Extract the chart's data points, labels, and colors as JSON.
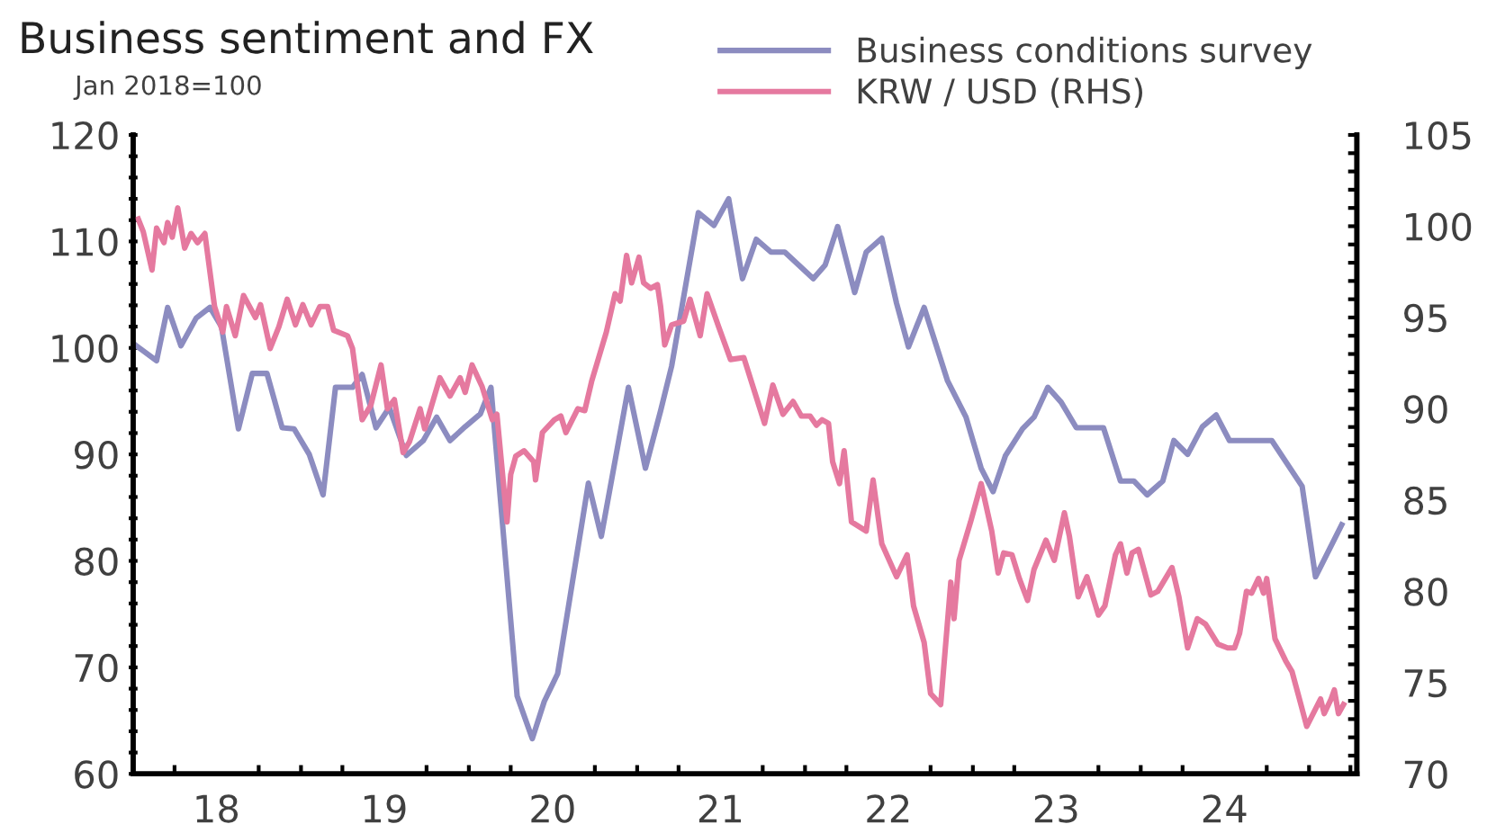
{
  "chart_data": {
    "type": "line",
    "title": "Business sentiment and FX",
    "annotations": [
      "Jan 2018=100"
    ],
    "xlim": [
      "2018-01-01",
      "2025-04-15"
    ],
    "xticks": [
      {
        "value": "2018-04-01",
        "label": null
      },
      {
        "value": "2018-07-01",
        "label": "18"
      },
      {
        "value": "2018-10-01",
        "label": null
      },
      {
        "value": "2019-01-01",
        "label": null
      },
      {
        "value": "2019-04-01",
        "label": null
      },
      {
        "value": "2019-07-01",
        "label": "19"
      },
      {
        "value": "2019-10-01",
        "label": null
      },
      {
        "value": "2020-01-01",
        "label": null
      },
      {
        "value": "2020-04-01",
        "label": null
      },
      {
        "value": "2020-07-01",
        "label": "20"
      },
      {
        "value": "2020-10-01",
        "label": null
      },
      {
        "value": "2021-01-01",
        "label": null
      },
      {
        "value": "2021-04-01",
        "label": null
      },
      {
        "value": "2021-07-01",
        "label": "21"
      },
      {
        "value": "2021-10-01",
        "label": null
      },
      {
        "value": "2022-01-01",
        "label": null
      },
      {
        "value": "2022-04-01",
        "label": null
      },
      {
        "value": "2022-07-01",
        "label": "22"
      },
      {
        "value": "2022-10-01",
        "label": null
      },
      {
        "value": "2023-01-01",
        "label": null
      },
      {
        "value": "2023-04-01",
        "label": null
      },
      {
        "value": "2023-07-01",
        "label": "23"
      },
      {
        "value": "2023-10-01",
        "label": null
      },
      {
        "value": "2024-01-01",
        "label": null
      },
      {
        "value": "2024-04-01",
        "label": null
      },
      {
        "value": "2024-07-01",
        "label": "24"
      },
      {
        "value": "2024-10-01",
        "label": null
      },
      {
        "value": "2025-01-01",
        "label": null
      },
      {
        "value": "2025-04-01",
        "label": null
      }
    ],
    "ylim": [
      60,
      120
    ],
    "yticks": [
      60,
      {
        "value": 62,
        "label": null
      },
      {
        "value": 64,
        "label": null
      },
      {
        "value": 66,
        "label": null
      },
      {
        "value": 68,
        "label": null
      },
      70,
      {
        "value": 72,
        "label": null
      },
      {
        "value": 74,
        "label": null
      },
      {
        "value": 76,
        "label": null
      },
      {
        "value": 78,
        "label": null
      },
      80,
      {
        "value": 82,
        "label": null
      },
      {
        "value": 84,
        "label": null
      },
      {
        "value": 86,
        "label": null
      },
      {
        "value": 88,
        "label": null
      },
      90,
      {
        "value": 92,
        "label": null
      },
      {
        "value": 94,
        "label": null
      },
      {
        "value": 96,
        "label": null
      },
      {
        "value": 98,
        "label": null
      },
      100,
      {
        "value": 102,
        "label": null
      },
      {
        "value": 104,
        "label": null
      },
      {
        "value": 106,
        "label": null
      },
      {
        "value": 108,
        "label": null
      },
      110,
      {
        "value": 112,
        "label": null
      },
      {
        "value": 114,
        "label": null
      },
      {
        "value": 116,
        "label": null
      },
      {
        "value": 118,
        "label": null
      },
      120
    ],
    "y2lim": [
      70,
      105
    ],
    "y2ticks": [
      70,
      {
        "value": 71,
        "label": null
      },
      {
        "value": 72,
        "label": null
      },
      {
        "value": 73,
        "label": null
      },
      {
        "value": 74,
        "label": null
      },
      75,
      {
        "value": 76,
        "label": null
      },
      {
        "value": 77,
        "label": null
      },
      {
        "value": 78,
        "label": null
      },
      {
        "value": 79,
        "label": null
      },
      80,
      {
        "value": 81,
        "label": null
      },
      {
        "value": 82,
        "label": null
      },
      {
        "value": 83,
        "label": null
      },
      {
        "value": 84,
        "label": null
      },
      85,
      {
        "value": 86,
        "label": null
      },
      {
        "value": 87,
        "label": null
      },
      {
        "value": 88,
        "label": null
      },
      {
        "value": 89,
        "label": null
      },
      90,
      {
        "value": 91,
        "label": null
      },
      {
        "value": 92,
        "label": null
      },
      {
        "value": 93,
        "label": null
      },
      {
        "value": 94,
        "label": null
      },
      95,
      {
        "value": 96,
        "label": null
      },
      {
        "value": 97,
        "label": null
      },
      {
        "value": 98,
        "label": null
      },
      {
        "value": 99,
        "label": null
      },
      100,
      {
        "value": 101,
        "label": null
      },
      {
        "value": 102,
        "label": null
      },
      {
        "value": 103,
        "label": null
      },
      {
        "value": 104,
        "label": null
      },
      105
    ],
    "grid": false,
    "legend": "top right",
    "line_style": "solid",
    "marker": "none",
    "series": [
      {
        "name": "Business conditions survey",
        "color": "#8c8cc0",
        "x": [
          "2018-01-08",
          "2018-02-21",
          "2018-03-17",
          "2018-04-15",
          "2018-05-18",
          "2018-06-17",
          "2018-07-12",
          "2018-08-18",
          "2018-09-17",
          "2018-10-19",
          "2018-11-21",
          "2018-12-17",
          "2019-01-19",
          "2019-02-18",
          "2019-03-17",
          "2019-04-23",
          "2019-05-14",
          "2019-06-13",
          "2019-07-12",
          "2019-08-18",
          "2019-09-24",
          "2019-10-23",
          "2019-11-21",
          "2019-12-24",
          "2020-01-26",
          "2020-02-18",
          "2020-04-15",
          "2020-05-18",
          "2020-06-13",
          "2020-07-12",
          "2020-09-17",
          "2020-10-15",
          "2020-12-13",
          "2021-01-19",
          "2021-02-21",
          "2021-03-17",
          "2021-05-14",
          "2021-06-17",
          "2021-07-19",
          "2021-08-18",
          "2021-09-17",
          "2021-10-19",
          "2021-11-18",
          "2022-01-19",
          "2022-02-14",
          "2022-03-13",
          "2022-04-19",
          "2022-05-14",
          "2022-06-17",
          "2022-07-19",
          "2022-08-14",
          "2022-09-17",
          "2022-11-07",
          "2022-12-17",
          "2023-01-19",
          "2023-02-14",
          "2023-03-13",
          "2023-04-19",
          "2023-05-14",
          "2023-06-13",
          "2023-07-12",
          "2023-08-14",
          "2023-10-12",
          "2023-11-18",
          "2023-12-17",
          "2024-01-15",
          "2024-02-18",
          "2024-03-13",
          "2024-04-12",
          "2024-05-14",
          "2024-06-13",
          "2024-07-12",
          "2024-10-12",
          "2024-12-17",
          "2025-01-15",
          "2025-03-13"
        ],
        "values": [
          100.2,
          98.8,
          103.8,
          100.2,
          102.8,
          103.8,
          102,
          92.4,
          97.6,
          97.6,
          92.5,
          92.4,
          90,
          86.2,
          96.3,
          96.3,
          97.5,
          92.5,
          94.4,
          89.9,
          91.3,
          93.5,
          91.3,
          92.6,
          93.8,
          96.3,
          67.3,
          63.3,
          66.8,
          69.4,
          87.3,
          82.3,
          96.3,
          88.7,
          94.1,
          98.3,
          112.7,
          111.5,
          114,
          106.5,
          110.2,
          109,
          109,
          106.5,
          107.8,
          111.4,
          105.2,
          109,
          110.3,
          104.2,
          100.1,
          103.8,
          96.9,
          93.5,
          88.7,
          86.5,
          89.9,
          92.4,
          93.5,
          96.3,
          94.9,
          92.5,
          92.5,
          87.5,
          87.5,
          86.2,
          87.5,
          91.3,
          90,
          92.6,
          93.7,
          91.3,
          91.3,
          87,
          78.5,
          83.4
        ]
      },
      {
        "name": "KRW / USD (RHS)",
        "color": "#e5799f",
        "axis": "y2",
        "x": [
          "2018-01-12",
          "2018-01-23",
          "2018-02-11",
          "2018-02-21",
          "2018-03-09",
          "2018-03-17",
          "2018-03-27",
          "2018-04-08",
          "2018-04-23",
          "2018-05-07",
          "2018-05-21",
          "2018-06-06",
          "2018-06-27",
          "2018-07-15",
          "2018-07-23",
          "2018-08-11",
          "2018-08-29",
          "2018-09-24",
          "2018-10-05",
          "2018-10-26",
          "2018-11-14",
          "2018-12-02",
          "2018-12-20",
          "2019-01-05",
          "2019-01-23",
          "2019-02-11",
          "2019-02-28",
          "2019-03-13",
          "2019-04-12",
          "2019-04-23",
          "2019-05-14",
          "2019-06-02",
          "2019-06-24",
          "2019-07-08",
          "2019-07-23",
          "2019-08-11",
          "2019-08-25",
          "2019-09-17",
          "2019-09-27",
          "2019-10-30",
          "2019-11-21",
          "2019-12-13",
          "2019-12-24",
          "2020-01-08",
          "2020-01-30",
          "2020-02-21",
          "2020-03-02",
          "2020-03-24",
          "2020-04-01",
          "2020-04-12",
          "2020-04-30",
          "2020-05-21",
          "2020-05-25",
          "2020-06-09",
          "2020-07-05",
          "2020-07-19",
          "2020-07-30",
          "2020-08-25",
          "2020-09-09",
          "2020-09-24",
          "2020-10-26",
          "2020-11-14",
          "2020-11-25",
          "2020-12-09",
          "2020-12-20",
          "2021-01-05",
          "2021-01-15",
          "2021-01-30",
          "2021-02-14",
          "2021-02-21",
          "2021-03-02",
          "2021-03-17",
          "2021-04-12",
          "2021-04-26",
          "2021-05-07",
          "2021-05-18",
          "2021-06-02",
          "2021-06-27",
          "2021-07-23",
          "2021-08-21",
          "2021-09-20",
          "2021-10-05",
          "2021-10-23",
          "2021-11-14",
          "2021-12-06",
          "2021-12-24",
          "2022-01-12",
          "2022-01-26",
          "2022-02-07",
          "2022-02-21",
          "2022-03-02",
          "2022-03-17",
          "2022-03-27",
          "2022-04-12",
          "2022-05-14",
          "2022-05-29",
          "2022-06-17",
          "2022-07-19",
          "2022-08-11",
          "2022-08-25",
          "2022-09-17",
          "2022-10-01",
          "2022-10-23",
          "2022-11-14",
          "2022-11-21",
          "2022-12-02",
          "2022-12-27",
          "2023-01-19",
          "2023-02-11",
          "2023-02-25",
          "2023-03-09",
          "2023-03-27",
          "2023-04-12",
          "2023-04-30",
          "2023-05-14",
          "2023-06-09",
          "2023-06-27",
          "2023-07-19",
          "2023-07-30",
          "2023-08-18",
          "2023-09-06",
          "2023-10-01",
          "2023-10-15",
          "2023-11-07",
          "2023-11-18",
          "2023-12-02",
          "2023-12-13",
          "2023-12-27",
          "2024-01-23",
          "2024-02-07",
          "2024-03-09",
          "2024-03-24",
          "2024-04-12",
          "2024-05-03",
          "2024-05-21",
          "2024-06-17",
          "2024-07-08",
          "2024-07-23",
          "2024-08-03",
          "2024-08-18",
          "2024-08-29",
          "2024-09-13",
          "2024-09-24",
          "2024-10-01",
          "2024-10-19",
          "2024-11-11",
          "2024-11-25",
          "2024-12-09",
          "2024-12-27",
          "2025-01-26",
          "2025-02-03",
          "2025-02-18",
          "2025-02-25",
          "2025-03-06",
          "2025-03-17"
        ],
        "values": [
          100.4,
          99.7,
          97.6,
          99.9,
          99.1,
          100.2,
          99.4,
          101,
          98.8,
          99.6,
          99.1,
          99.6,
          95.6,
          94.2,
          95.6,
          94,
          96.2,
          95,
          95.7,
          93.3,
          94.5,
          96,
          94.6,
          95.7,
          94.6,
          95.6,
          95.6,
          94.3,
          94,
          93.3,
          89.4,
          90.2,
          92.4,
          90,
          90.5,
          87.6,
          88.2,
          90,
          88.9,
          91.7,
          90.7,
          91.7,
          90.9,
          92.4,
          91.2,
          89.4,
          89.7,
          83.8,
          86.4,
          87.4,
          87.7,
          87.1,
          86.1,
          88.7,
          89.4,
          89.6,
          88.7,
          90,
          89.9,
          91.5,
          94.2,
          96.3,
          95.9,
          98.4,
          96.9,
          98.3,
          96.9,
          96.6,
          96.8,
          95.6,
          93.5,
          94.6,
          94.8,
          96,
          95,
          94,
          96.3,
          94.5,
          92.7,
          92.8,
          90.4,
          89.2,
          91.3,
          89.7,
          90.4,
          89.6,
          89.6,
          89.1,
          89.4,
          89.2,
          87.1,
          85.9,
          87.7,
          83.8,
          83.3,
          86.1,
          82.6,
          80.8,
          82,
          79.2,
          77.2,
          74.4,
          73.8,
          80.5,
          78.5,
          81.7,
          83.8,
          85.9,
          83.3,
          81,
          82.1,
          82,
          80.7,
          79.5,
          81.2,
          82.8,
          81.7,
          84.3,
          83,
          79.7,
          80.8,
          78.7,
          79.2,
          82,
          82.6,
          81,
          82.1,
          82.3,
          79.8,
          80,
          81.3,
          79.7,
          76.9,
          78.5,
          78.2,
          77.1,
          76.9,
          76.9,
          77.7,
          80,
          79.9,
          80.7,
          79.9,
          80.7,
          77.4,
          76.2,
          75.6,
          74.3,
          72.6,
          74.1,
          73.3,
          74.1,
          74.6,
          73.3,
          73.8
        ]
      }
    ]
  }
}
